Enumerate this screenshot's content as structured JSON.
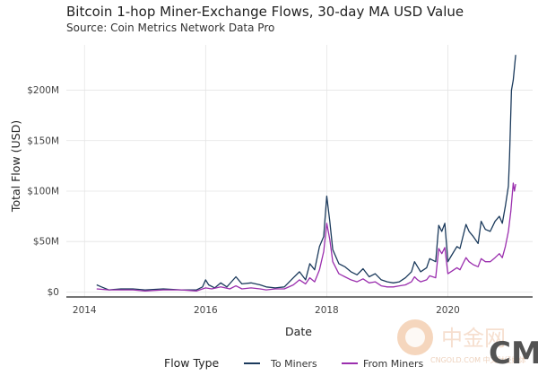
{
  "chart_data": {
    "type": "line",
    "title": "Bitcoin 1-hop Miner-Exchange Flows, 30-day MA USD Value",
    "subtitle": "Source: Coin Metrics Network Data Pro",
    "xlabel": "Date",
    "ylabel": "Total Flow (USD)",
    "x_ticks": [
      2014,
      2016,
      2018,
      2020
    ],
    "y_ticks": [
      0,
      50,
      100,
      150,
      200
    ],
    "y_tick_labels": [
      "$0",
      "$50M",
      "$100M",
      "$150M",
      "$200M"
    ],
    "xlim": [
      2013.7,
      2021.4
    ],
    "ylim": [
      -5,
      245
    ],
    "y_unit": "million USD",
    "grid": true,
    "legend": {
      "title": "Flow Type",
      "position": "bottom"
    },
    "series": [
      {
        "name": "To Miners",
        "color": "#1b3a5c",
        "points": [
          [
            2014.2,
            7
          ],
          [
            2014.28,
            5
          ],
          [
            2014.4,
            2
          ],
          [
            2014.6,
            3
          ],
          [
            2014.8,
            3
          ],
          [
            2015.0,
            2
          ],
          [
            2015.3,
            3
          ],
          [
            2015.6,
            2
          ],
          [
            2015.85,
            2
          ],
          [
            2015.95,
            5
          ],
          [
            2016.0,
            12
          ],
          [
            2016.05,
            7
          ],
          [
            2016.15,
            4
          ],
          [
            2016.25,
            9
          ],
          [
            2016.35,
            5
          ],
          [
            2016.5,
            15
          ],
          [
            2016.6,
            8
          ],
          [
            2016.75,
            9
          ],
          [
            2016.9,
            7
          ],
          [
            2017.0,
            5
          ],
          [
            2017.15,
            4
          ],
          [
            2017.3,
            5
          ],
          [
            2017.45,
            14
          ],
          [
            2017.55,
            20
          ],
          [
            2017.65,
            12
          ],
          [
            2017.72,
            28
          ],
          [
            2017.8,
            22
          ],
          [
            2017.88,
            45
          ],
          [
            2017.95,
            55
          ],
          [
            2018.0,
            95
          ],
          [
            2018.05,
            70
          ],
          [
            2018.1,
            42
          ],
          [
            2018.2,
            28
          ],
          [
            2018.3,
            25
          ],
          [
            2018.4,
            20
          ],
          [
            2018.5,
            17
          ],
          [
            2018.6,
            23
          ],
          [
            2018.7,
            15
          ],
          [
            2018.8,
            18
          ],
          [
            2018.9,
            12
          ],
          [
            2019.0,
            10
          ],
          [
            2019.1,
            9
          ],
          [
            2019.2,
            10
          ],
          [
            2019.3,
            14
          ],
          [
            2019.4,
            20
          ],
          [
            2019.45,
            30
          ],
          [
            2019.5,
            25
          ],
          [
            2019.55,
            20
          ],
          [
            2019.65,
            24
          ],
          [
            2019.7,
            33
          ],
          [
            2019.8,
            30
          ],
          [
            2019.85,
            66
          ],
          [
            2019.9,
            60
          ],
          [
            2019.95,
            68
          ],
          [
            2020.0,
            30
          ],
          [
            2020.05,
            35
          ],
          [
            2020.15,
            45
          ],
          [
            2020.2,
            43
          ],
          [
            2020.25,
            55
          ],
          [
            2020.3,
            67
          ],
          [
            2020.35,
            60
          ],
          [
            2020.42,
            55
          ],
          [
            2020.5,
            48
          ],
          [
            2020.55,
            70
          ],
          [
            2020.62,
            62
          ],
          [
            2020.7,
            60
          ],
          [
            2020.78,
            70
          ],
          [
            2020.85,
            75
          ],
          [
            2020.9,
            68
          ],
          [
            2020.95,
            85
          ],
          [
            2021.0,
            105
          ],
          [
            2021.02,
            135
          ],
          [
            2021.05,
            200
          ],
          [
            2021.08,
            210
          ],
          [
            2021.12,
            235
          ]
        ]
      },
      {
        "name": "From Miners",
        "color": "#9b2fae",
        "points": [
          [
            2014.2,
            3
          ],
          [
            2014.4,
            2
          ],
          [
            2014.6,
            2
          ],
          [
            2014.8,
            2
          ],
          [
            2015.0,
            1
          ],
          [
            2015.3,
            2
          ],
          [
            2015.6,
            2
          ],
          [
            2015.85,
            1
          ],
          [
            2016.0,
            4
          ],
          [
            2016.1,
            3
          ],
          [
            2016.25,
            5
          ],
          [
            2016.4,
            3
          ],
          [
            2016.5,
            6
          ],
          [
            2016.6,
            3
          ],
          [
            2016.75,
            4
          ],
          [
            2016.9,
            3
          ],
          [
            2017.0,
            2
          ],
          [
            2017.15,
            3
          ],
          [
            2017.3,
            3
          ],
          [
            2017.45,
            7
          ],
          [
            2017.55,
            12
          ],
          [
            2017.65,
            8
          ],
          [
            2017.72,
            14
          ],
          [
            2017.8,
            10
          ],
          [
            2017.88,
            22
          ],
          [
            2017.95,
            40
          ],
          [
            2018.0,
            68
          ],
          [
            2018.05,
            52
          ],
          [
            2018.1,
            30
          ],
          [
            2018.2,
            18
          ],
          [
            2018.3,
            15
          ],
          [
            2018.4,
            12
          ],
          [
            2018.5,
            10
          ],
          [
            2018.6,
            13
          ],
          [
            2018.7,
            9
          ],
          [
            2018.8,
            10
          ],
          [
            2018.9,
            6
          ],
          [
            2019.0,
            5
          ],
          [
            2019.1,
            5
          ],
          [
            2019.2,
            6
          ],
          [
            2019.3,
            7
          ],
          [
            2019.4,
            10
          ],
          [
            2019.45,
            15
          ],
          [
            2019.5,
            12
          ],
          [
            2019.55,
            10
          ],
          [
            2019.65,
            12
          ],
          [
            2019.7,
            16
          ],
          [
            2019.8,
            14
          ],
          [
            2019.85,
            43
          ],
          [
            2019.9,
            38
          ],
          [
            2019.95,
            44
          ],
          [
            2020.0,
            18
          ],
          [
            2020.05,
            20
          ],
          [
            2020.15,
            24
          ],
          [
            2020.2,
            22
          ],
          [
            2020.25,
            28
          ],
          [
            2020.3,
            34
          ],
          [
            2020.35,
            30
          ],
          [
            2020.42,
            27
          ],
          [
            2020.5,
            25
          ],
          [
            2020.55,
            33
          ],
          [
            2020.62,
            30
          ],
          [
            2020.7,
            30
          ],
          [
            2020.78,
            34
          ],
          [
            2020.85,
            38
          ],
          [
            2020.9,
            34
          ],
          [
            2020.95,
            45
          ],
          [
            2021.0,
            60
          ],
          [
            2021.04,
            80
          ],
          [
            2021.08,
            108
          ],
          [
            2021.1,
            100
          ],
          [
            2021.12,
            107
          ]
        ]
      }
    ]
  },
  "watermark": {
    "text": "中金网",
    "sub": "CNGOLD.COM 中文财经媒体",
    "logo_text": "CM"
  }
}
